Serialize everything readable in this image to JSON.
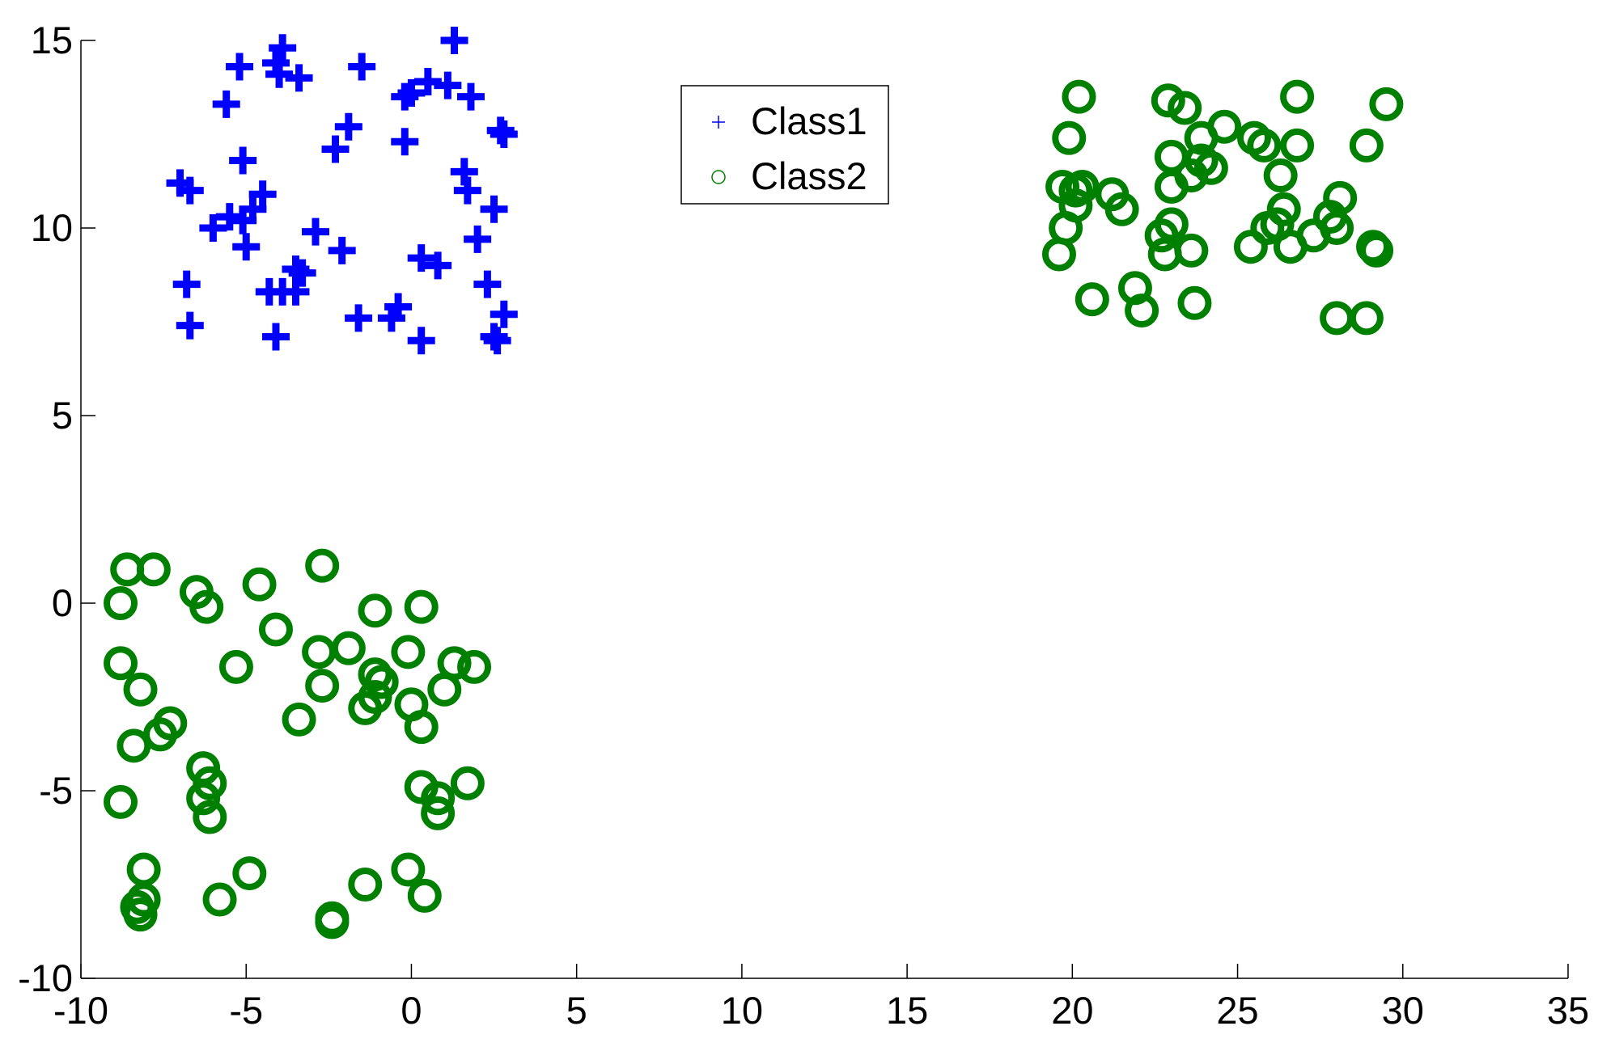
{
  "chart_data": {
    "type": "scatter",
    "title": "",
    "xlabel": "",
    "ylabel": "",
    "xlim": [
      -10,
      35
    ],
    "ylim": [
      -10,
      15
    ],
    "xticks": [
      -10,
      -5,
      0,
      5,
      10,
      15,
      20,
      25,
      30,
      35
    ],
    "yticks": [
      -10,
      -5,
      0,
      5,
      10,
      15
    ],
    "xtick_labels": [
      "-10",
      "-5",
      "0",
      "5",
      "10",
      "15",
      "20",
      "25",
      "30",
      "35"
    ],
    "ytick_labels": [
      "-10",
      "-5",
      "0",
      "5",
      "10",
      "15"
    ],
    "grid": false,
    "legend_position": "top-center",
    "series": [
      {
        "name": "Class1",
        "marker": "plus",
        "color": "#0000ff",
        "points": [
          [
            -7.0,
            11.2
          ],
          [
            -6.7,
            11.0
          ],
          [
            -6.8,
            8.5
          ],
          [
            -6.7,
            7.4
          ],
          [
            -6.0,
            10.0
          ],
          [
            -5.6,
            13.3
          ],
          [
            -5.5,
            10.3
          ],
          [
            -5.2,
            14.3
          ],
          [
            -5.1,
            10.2
          ],
          [
            -5.1,
            11.8
          ],
          [
            -5.0,
            9.5
          ],
          [
            -4.8,
            10.5
          ],
          [
            -4.5,
            10.9
          ],
          [
            -4.3,
            8.3
          ],
          [
            -4.1,
            14.4
          ],
          [
            -4.0,
            14.1
          ],
          [
            -4.1,
            7.1
          ],
          [
            -3.9,
            14.8
          ],
          [
            -3.9,
            8.3
          ],
          [
            -3.5,
            8.9
          ],
          [
            -3.4,
            14.0
          ],
          [
            -3.5,
            8.3
          ],
          [
            -3.3,
            8.8
          ],
          [
            -2.9,
            9.9
          ],
          [
            -2.3,
            12.1
          ],
          [
            -2.1,
            9.4
          ],
          [
            -1.9,
            12.7
          ],
          [
            -1.6,
            7.6
          ],
          [
            -1.5,
            14.3
          ],
          [
            -0.6,
            7.6
          ],
          [
            -0.4,
            7.9
          ],
          [
            -0.2,
            13.5
          ],
          [
            -0.2,
            12.3
          ],
          [
            0.0,
            13.6
          ],
          [
            0.3,
            9.2
          ],
          [
            0.3,
            7.0
          ],
          [
            0.5,
            13.9
          ],
          [
            0.8,
            9.0
          ],
          [
            1.1,
            13.8
          ],
          [
            1.3,
            15.0
          ],
          [
            1.6,
            11.5
          ],
          [
            1.7,
            11.0
          ],
          [
            1.8,
            13.5
          ],
          [
            2.0,
            9.7
          ],
          [
            2.3,
            8.5
          ],
          [
            2.5,
            10.5
          ],
          [
            2.5,
            7.1
          ],
          [
            2.6,
            7.0
          ],
          [
            2.7,
            12.6
          ],
          [
            2.8,
            12.5
          ],
          [
            2.8,
            7.7
          ]
        ]
      },
      {
        "name": "Class2",
        "marker": "circle",
        "color": "#008000",
        "points": [
          [
            -8.8,
            0.0
          ],
          [
            -8.8,
            -1.6
          ],
          [
            -8.8,
            -5.3
          ],
          [
            -8.6,
            0.9
          ],
          [
            -8.4,
            -3.8
          ],
          [
            -8.3,
            -8.1
          ],
          [
            -8.2,
            -8.3
          ],
          [
            -8.2,
            -2.3
          ],
          [
            -8.1,
            -7.1
          ],
          [
            -8.1,
            -7.9
          ],
          [
            -7.8,
            0.9
          ],
          [
            -7.6,
            -3.5
          ],
          [
            -7.3,
            -3.2
          ],
          [
            -6.5,
            0.3
          ],
          [
            -6.3,
            -4.4
          ],
          [
            -6.3,
            -5.2
          ],
          [
            -6.2,
            -0.1
          ],
          [
            -6.1,
            -4.8
          ],
          [
            -6.1,
            -5.7
          ],
          [
            -5.8,
            -7.9
          ],
          [
            -5.3,
            -1.7
          ],
          [
            -4.9,
            -7.2
          ],
          [
            -4.6,
            0.5
          ],
          [
            -4.1,
            -0.7
          ],
          [
            -3.4,
            -3.1
          ],
          [
            -2.8,
            -1.3
          ],
          [
            -2.7,
            -2.2
          ],
          [
            -2.7,
            1.0
          ],
          [
            -2.4,
            -8.4
          ],
          [
            -2.4,
            -8.5
          ],
          [
            -1.9,
            -1.2
          ],
          [
            -1.4,
            -2.8
          ],
          [
            -1.4,
            -7.5
          ],
          [
            -1.1,
            -1.9
          ],
          [
            -1.1,
            -2.5
          ],
          [
            -1.1,
            -0.2
          ],
          [
            -0.9,
            -2.1
          ],
          [
            -0.1,
            -1.3
          ],
          [
            -0.1,
            -7.1
          ],
          [
            0.0,
            -2.7
          ],
          [
            0.3,
            -0.1
          ],
          [
            0.3,
            -3.3
          ],
          [
            0.3,
            -4.9
          ],
          [
            0.4,
            -7.8
          ],
          [
            0.8,
            -5.6
          ],
          [
            0.8,
            -5.2
          ],
          [
            1.0,
            -2.3
          ],
          [
            1.3,
            -1.6
          ],
          [
            1.7,
            -4.8
          ],
          [
            1.9,
            -1.7
          ],
          [
            19.6,
            9.3
          ],
          [
            19.7,
            11.1
          ],
          [
            19.8,
            10.0
          ],
          [
            19.9,
            12.4
          ],
          [
            20.1,
            11.0
          ],
          [
            20.1,
            10.6
          ],
          [
            20.2,
            13.5
          ],
          [
            20.3,
            11.1
          ],
          [
            20.6,
            8.1
          ],
          [
            21.2,
            10.9
          ],
          [
            21.5,
            10.5
          ],
          [
            21.9,
            8.4
          ],
          [
            22.1,
            7.8
          ],
          [
            22.7,
            9.8
          ],
          [
            22.8,
            9.3
          ],
          [
            22.9,
            13.4
          ],
          [
            23.0,
            10.1
          ],
          [
            23.0,
            11.1
          ],
          [
            23.0,
            11.9
          ],
          [
            23.4,
            13.2
          ],
          [
            23.6,
            11.4
          ],
          [
            23.6,
            9.4
          ],
          [
            23.7,
            8.0
          ],
          [
            23.9,
            12.4
          ],
          [
            23.9,
            11.8
          ],
          [
            24.2,
            11.6
          ],
          [
            24.6,
            12.7
          ],
          [
            25.4,
            9.5
          ],
          [
            25.5,
            12.4
          ],
          [
            25.8,
            12.2
          ],
          [
            25.9,
            10.0
          ],
          [
            26.2,
            10.1
          ],
          [
            26.3,
            11.4
          ],
          [
            26.4,
            10.5
          ],
          [
            26.6,
            9.5
          ],
          [
            26.8,
            12.2
          ],
          [
            26.8,
            13.5
          ],
          [
            27.3,
            9.8
          ],
          [
            27.8,
            10.3
          ],
          [
            28.0,
            10.0
          ],
          [
            28.0,
            7.6
          ],
          [
            28.1,
            10.8
          ],
          [
            28.9,
            7.6
          ],
          [
            28.9,
            12.2
          ],
          [
            29.1,
            9.5
          ],
          [
            29.2,
            9.4
          ],
          [
            29.5,
            13.3
          ]
        ]
      }
    ],
    "legend": {
      "entries": [
        "Class1",
        "Class2"
      ]
    }
  }
}
